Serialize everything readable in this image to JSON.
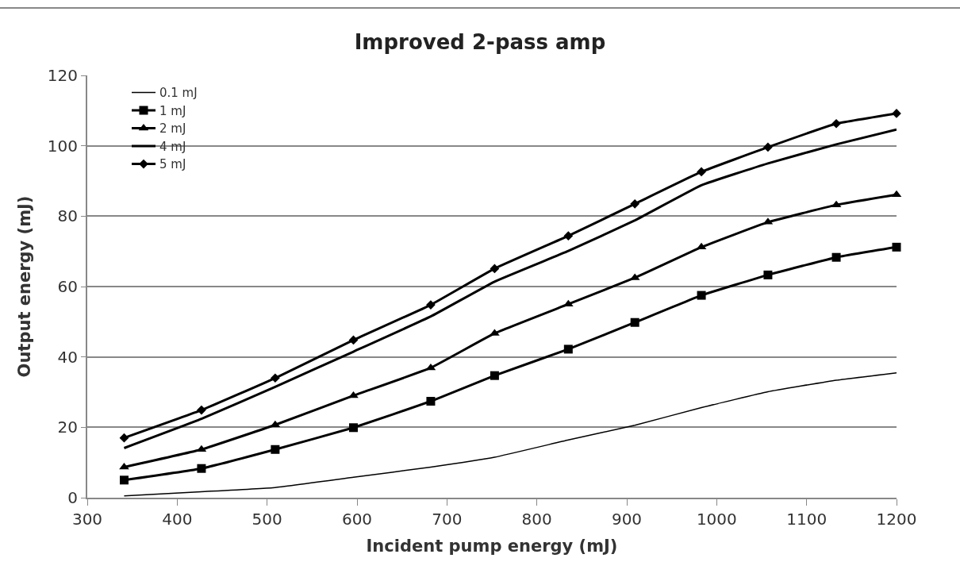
{
  "chart_data": {
    "type": "line",
    "title": "Improved 2-pass amp",
    "xlabel": "Incident pump energy (mJ)",
    "ylabel": "Output energy (mJ)",
    "x": [
      341,
      427,
      509,
      596,
      682,
      753,
      835,
      909,
      983,
      1057,
      1133,
      1200
    ],
    "series": [
      {
        "name": "0.1 mJ",
        "color": "#000000",
        "marker": "none",
        "values": [
          0.5,
          1.7,
          2.9,
          5.8,
          8.7,
          11.5,
          16.4,
          20.6,
          25.6,
          30.1,
          33.4,
          35.5
        ]
      },
      {
        "name": "1 mJ",
        "color": "#000000",
        "marker": "square",
        "values": [
          5.0,
          8.3,
          13.7,
          19.9,
          27.4,
          34.7,
          42.2,
          49.8,
          57.5,
          63.3,
          68.3,
          71.2
        ]
      },
      {
        "name": "2 mJ",
        "color": "#000000",
        "marker": "triangle",
        "values": [
          8.7,
          13.7,
          20.7,
          29.0,
          36.9,
          46.7,
          55.0,
          62.5,
          71.2,
          78.3,
          83.2,
          86.1
        ]
      },
      {
        "name": "4 mJ",
        "color": "#000000",
        "marker": "none",
        "values": [
          14.1,
          22.4,
          31.5,
          41.5,
          51.5,
          61.4,
          70.1,
          78.8,
          88.8,
          95.0,
          100.4,
          104.6
        ]
      },
      {
        "name": "5 mJ",
        "color": "#000000",
        "marker": "diamond",
        "values": [
          17.0,
          24.9,
          34.0,
          44.8,
          54.8,
          65.1,
          74.4,
          83.5,
          92.6,
          99.6,
          106.3,
          109.2
        ]
      }
    ],
    "xlim": [
      300,
      1200
    ],
    "xticks": [
      300,
      400,
      500,
      600,
      700,
      800,
      900,
      1000,
      1100,
      1200
    ],
    "ylim": [
      0,
      120
    ],
    "yticks": [
      0,
      20,
      40,
      60,
      80,
      100,
      120
    ],
    "grid": "y",
    "legend": "top left",
    "line_style": "solid"
  }
}
